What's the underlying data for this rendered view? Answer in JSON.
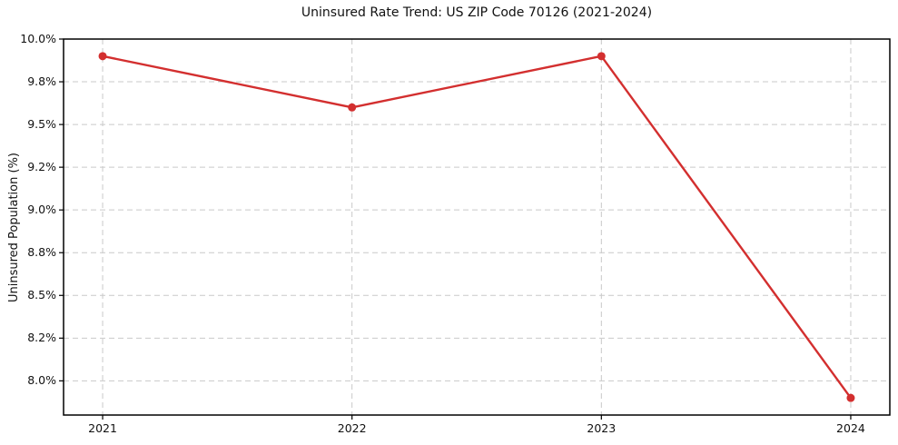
{
  "chart_data": {
    "type": "line",
    "title": "Uninsured Rate Trend: US ZIP Code 70126 (2021-2024)",
    "ylabel": "Uninsured Population (%)",
    "x": [
      2021,
      2022,
      2023,
      2024
    ],
    "series": [
      {
        "name": "Uninsured rate",
        "values": [
          9.9,
          9.6,
          9.9,
          7.9
        ]
      }
    ],
    "ylim": [
      7.8,
      10.0
    ],
    "yticks": {
      "values": [
        8.0,
        8.25,
        8.5,
        8.75,
        9.0,
        9.25,
        9.5,
        9.75,
        10.0
      ],
      "labels": [
        "8.0%",
        "8.2%",
        "8.5%",
        "8.8%",
        "9.0%",
        "9.2%",
        "9.5%",
        "9.8%",
        "10.0%"
      ]
    },
    "xticks": {
      "values": [
        2021,
        2022,
        2023,
        2024
      ],
      "labels": [
        "2021",
        "2022",
        "2023",
        "2024"
      ]
    },
    "grid": true,
    "grid_style": "dashed",
    "legend": "none",
    "marker": "circle",
    "colors": {
      "line": "#d32f2f",
      "marker": "#d32f2f",
      "grid": "#c9c9c9",
      "spine": "#000000",
      "text": "#111111",
      "background": "#ffffff"
    }
  }
}
